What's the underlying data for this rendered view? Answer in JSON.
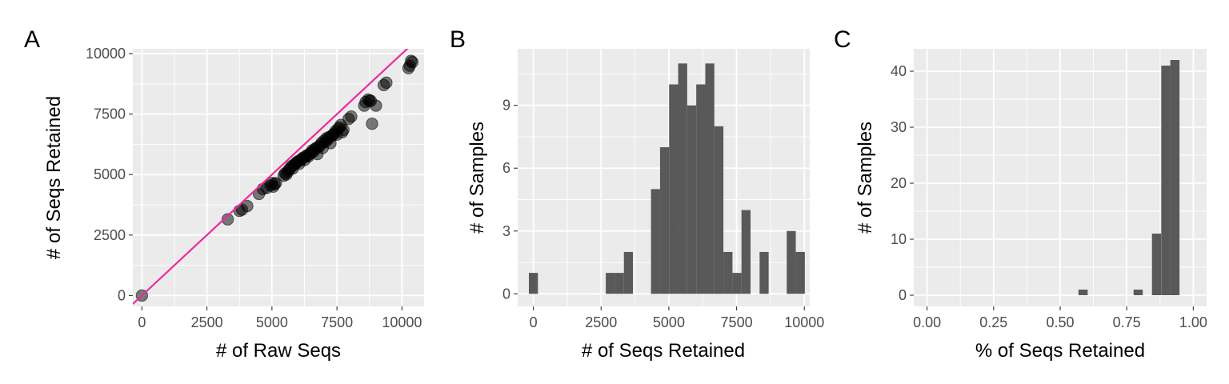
{
  "chart_data": [
    {
      "type": "scatter",
      "panel_label": "A",
      "xlabel": "# of Raw Seqs",
      "ylabel": "# of Seqs Retained",
      "xlim": [
        -350,
        10850
      ],
      "ylim": [
        -450,
        10200
      ],
      "x_ticks": [
        0,
        2500,
        5000,
        7500,
        10000
      ],
      "y_ticks": [
        0,
        2500,
        5000,
        7500,
        10000
      ],
      "point_color": "#000000",
      "reference_line": {
        "slope": 1,
        "intercept": 0,
        "color": "#ee2a9a"
      },
      "points": [
        [
          0,
          0
        ],
        [
          3300,
          3150
        ],
        [
          3750,
          3500
        ],
        [
          3850,
          3550
        ],
        [
          4050,
          3700
        ],
        [
          4500,
          4200
        ],
        [
          4650,
          4400
        ],
        [
          4800,
          4450
        ],
        [
          4950,
          4550
        ],
        [
          5000,
          4650
        ],
        [
          5050,
          4500
        ],
        [
          5100,
          4600
        ],
        [
          5150,
          4650
        ],
        [
          5450,
          4950
        ],
        [
          5500,
          5050
        ],
        [
          5550,
          5000
        ],
        [
          5600,
          5100
        ],
        [
          5650,
          5200
        ],
        [
          5700,
          5250
        ],
        [
          5750,
          5350
        ],
        [
          5800,
          5250
        ],
        [
          5850,
          5400
        ],
        [
          5900,
          5450
        ],
        [
          5950,
          5500
        ],
        [
          6000,
          5550
        ],
        [
          6050,
          5450
        ],
        [
          6100,
          5600
        ],
        [
          6150,
          5650
        ],
        [
          6200,
          5700
        ],
        [
          6250,
          5600
        ],
        [
          6300,
          5750
        ],
        [
          6350,
          5800
        ],
        [
          6400,
          5750
        ],
        [
          6450,
          5850
        ],
        [
          6500,
          5900
        ],
        [
          6550,
          6000
        ],
        [
          6600,
          5950
        ],
        [
          6650,
          6050
        ],
        [
          6700,
          6100
        ],
        [
          6750,
          5850
        ],
        [
          6800,
          6150
        ],
        [
          6850,
          6200
        ],
        [
          6900,
          6300
        ],
        [
          6950,
          6100
        ],
        [
          7000,
          6400
        ],
        [
          7050,
          6350
        ],
        [
          7100,
          6500
        ],
        [
          7150,
          6450
        ],
        [
          7200,
          6550
        ],
        [
          7250,
          6300
        ],
        [
          7300,
          6600
        ],
        [
          7350,
          6650
        ],
        [
          7400,
          6700
        ],
        [
          7450,
          6800
        ],
        [
          7500,
          6650
        ],
        [
          7550,
          6900
        ],
        [
          7600,
          6950
        ],
        [
          7650,
          7050
        ],
        [
          7700,
          6750
        ],
        [
          7750,
          6850
        ],
        [
          7950,
          7300
        ],
        [
          8050,
          7400
        ],
        [
          8550,
          7850
        ],
        [
          8600,
          8000
        ],
        [
          8700,
          8100
        ],
        [
          8750,
          8050
        ],
        [
          8800,
          8050
        ],
        [
          8850,
          7100
        ],
        [
          9000,
          7850
        ],
        [
          9300,
          8700
        ],
        [
          9400,
          8800
        ],
        [
          10250,
          9400
        ],
        [
          10300,
          9500
        ],
        [
          10350,
          9700
        ],
        [
          10400,
          9650
        ]
      ]
    },
    {
      "type": "bar",
      "subtype": "histogram",
      "panel_label": "B",
      "xlabel": "# of Seqs Retained",
      "ylabel": "# of Samples",
      "xlim": [
        -580,
        10200
      ],
      "ylim": [
        -0.6,
        11.7
      ],
      "x_ticks": [
        0,
        2500,
        5000,
        7500,
        10000
      ],
      "y_ticks": [
        0,
        3,
        6,
        9
      ],
      "bar_color": "#595959",
      "bin_width": 334,
      "bin_centers": [
        0,
        2839,
        3173,
        3507,
        4508,
        4842,
        5176,
        5510,
        5844,
        6178,
        6512,
        6846,
        7180,
        7514,
        7848,
        8516,
        9518,
        9852
      ],
      "counts": [
        1,
        1,
        1,
        2,
        5,
        7,
        10,
        11,
        9,
        10,
        11,
        8,
        2,
        1,
        4,
        2,
        3,
        2
      ]
    },
    {
      "type": "bar",
      "subtype": "histogram",
      "panel_label": "C",
      "xlabel": "% of Seqs Retained",
      "ylabel": "# of Samples",
      "xlim": [
        -0.05,
        1.05
      ],
      "ylim": [
        -2,
        44
      ],
      "x_ticks": [
        "0.00",
        "0.25",
        "0.50",
        "0.75",
        "1.00"
      ],
      "y_ticks": [
        0,
        10,
        20,
        30,
        40
      ],
      "bar_color": "#595959",
      "bin_width": 0.0345,
      "bin_centers": [
        0.586,
        0.793,
        0.862,
        0.897,
        0.931
      ],
      "counts": [
        1,
        1,
        11,
        41,
        42
      ]
    }
  ]
}
